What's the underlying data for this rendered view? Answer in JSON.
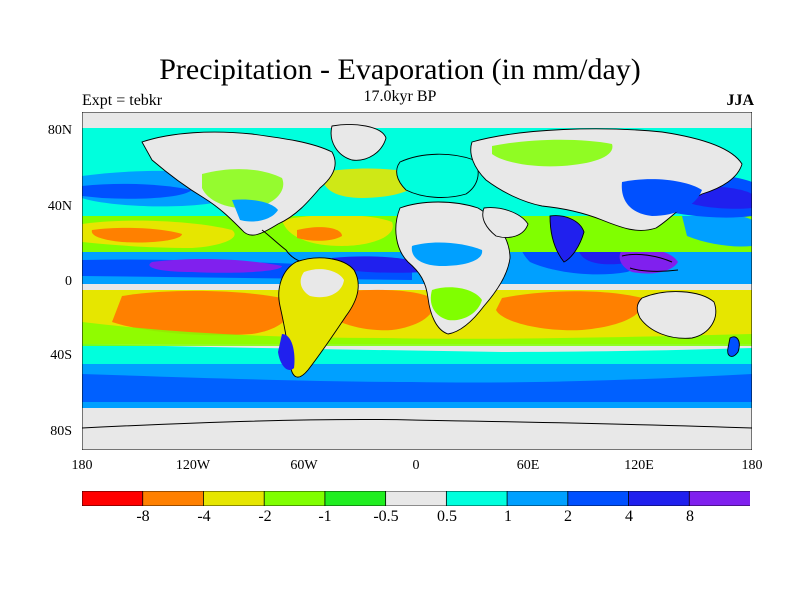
{
  "header": {
    "title": "Precipitation - Evaporation (in mm/day)",
    "subtitle": "17.0kyr BP",
    "left_label": "Expt = tebkr",
    "right_label": "JJA"
  },
  "map": {
    "lat_labels": [
      "80N",
      "40N",
      "0",
      "40S",
      "80S"
    ],
    "lon_labels": [
      "180",
      "120W",
      "60W",
      "0",
      "60E",
      "120E",
      "180"
    ]
  },
  "colorbar": {
    "labels": [
      "-8",
      "-4",
      "-2",
      "-1",
      "-0.5",
      "0.5",
      "1",
      "2",
      "4",
      "8"
    ],
    "colors": [
      "#ff0000",
      "#ff8000",
      "#e6e600",
      "#80ff00",
      "#20ee20",
      "#e8e8e8",
      "#00ffdd",
      "#00a0ff",
      "#0050ff",
      "#2020ee",
      "#8020ee"
    ]
  },
  "palette": {
    "dry_strong": "#ff8000",
    "dry": "#e6e600",
    "dry_mild": "#80ff00",
    "dry_slight": "#20ee20",
    "neutral": "#e8e8e8",
    "wet_slight": "#00ffdd",
    "wet": "#00a0ff",
    "wet_mild": "#0050ff",
    "wet_strong": "#2020ee",
    "wet_extreme": "#8020ee",
    "coast": "#000000"
  }
}
